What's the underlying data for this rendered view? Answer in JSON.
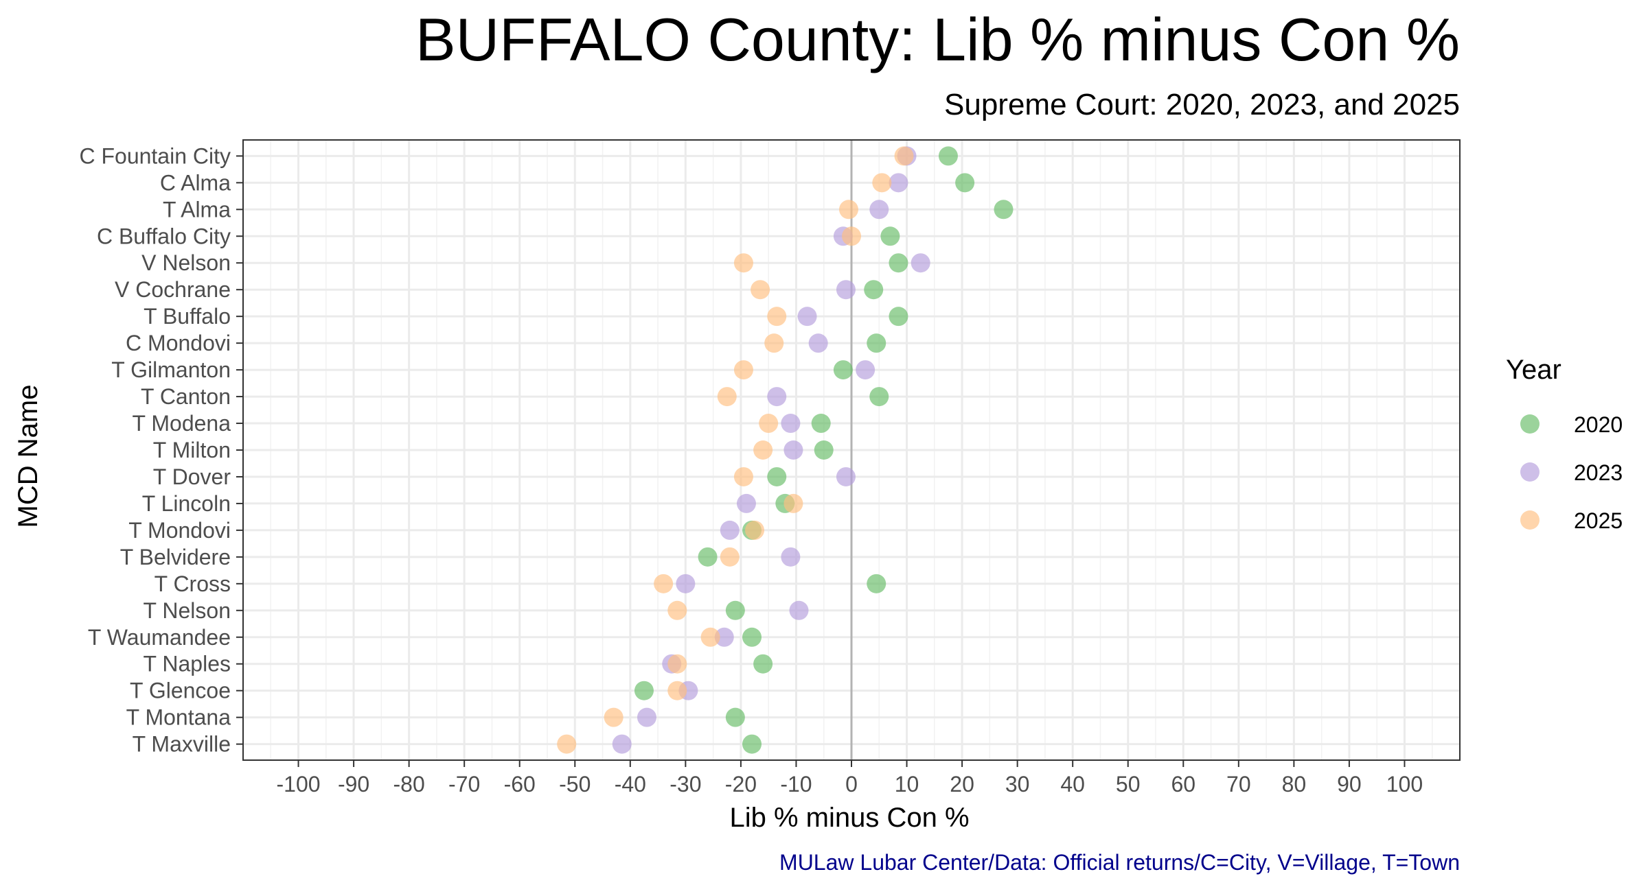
{
  "chart_data": {
    "type": "scatter",
    "title": "BUFFALO County: Lib % minus Con %",
    "subtitle": "Supreme Court: 2020, 2023, and 2025",
    "xlabel": "Lib % minus Con %",
    "ylabel": "MCD Name",
    "caption": "MULaw Lubar Center/Data: Official returns/C=City, V=Village, T=Town",
    "xlim": [
      -110,
      110
    ],
    "xticks": [
      -100,
      -90,
      -80,
      -70,
      -60,
      -50,
      -40,
      -30,
      -20,
      -10,
      0,
      10,
      20,
      30,
      40,
      50,
      60,
      70,
      80,
      90,
      100
    ],
    "xtick_labels": [
      "-100",
      "-90",
      "-80",
      "-70",
      "-60",
      "-50",
      "-40",
      "-30",
      "-20",
      "-10",
      "0",
      "10",
      "20",
      "30",
      "40",
      "50",
      "60",
      "70",
      "80",
      "90",
      "100"
    ],
    "grid": true,
    "legend": {
      "title": "Year",
      "position": "right"
    },
    "categories": [
      "C Fountain City",
      "C Alma",
      "T Alma",
      "C Buffalo City",
      "V Nelson",
      "V Cochrane",
      "T Buffalo",
      "C Mondovi",
      "T Gilmanton",
      "T Canton",
      "T Modena",
      "T Milton",
      "T Dover",
      "T Lincoln",
      "T Mondovi",
      "T Belvidere",
      "T Cross",
      "T Nelson",
      "T Waumandee",
      "T Naples",
      "T Glencoe",
      "T Montana",
      "T Maxville"
    ],
    "series": [
      {
        "name": "2020",
        "color": "#66bb66",
        "values": [
          17.5,
          20.5,
          27.5,
          7,
          8.5,
          4,
          8.5,
          4.5,
          -1.5,
          5,
          -5.5,
          -5,
          -13.5,
          -12,
          -18,
          -26,
          4.5,
          -21,
          -18,
          -16,
          -37.5,
          -21,
          -18
        ]
      },
      {
        "name": "2023",
        "color": "#b39ddb",
        "values": [
          10,
          8.5,
          5,
          -1.5,
          12.5,
          -1,
          -8,
          -6,
          2.5,
          -13.5,
          -11,
          -10.5,
          -1,
          -19,
          -22,
          -11,
          -30,
          -9.5,
          -23,
          -32.5,
          -29.5,
          -37,
          -41.5
        ]
      },
      {
        "name": "2025",
        "color": "#ffbf80",
        "values": [
          9.5,
          5.5,
          -0.5,
          0,
          -19.5,
          -16.5,
          -13.5,
          -14,
          -19.5,
          -22.5,
          -15,
          -16,
          -19.5,
          -10.5,
          -17.5,
          -22,
          -34,
          -31.5,
          -25.5,
          -31.5,
          -31.5,
          -43,
          -51.5
        ]
      }
    ]
  }
}
